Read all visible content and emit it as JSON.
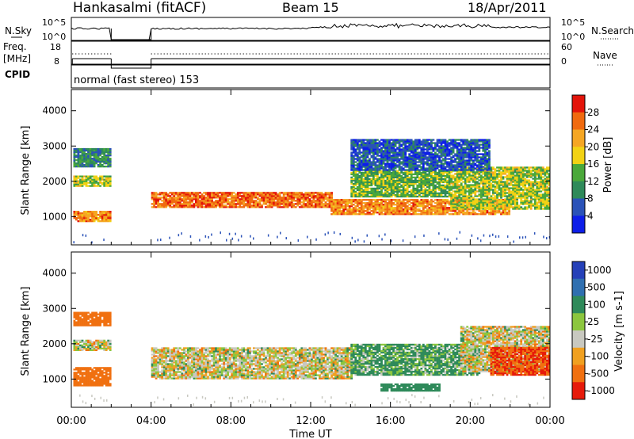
{
  "header": {
    "station": "Hankasalmi (fitACF)",
    "beam": "Beam 15",
    "date": "18/Apr/2011"
  },
  "noise_panel": {
    "left_label": "N.Sky",
    "right_label": "N.Search",
    "ticks_left": [
      "10^5",
      "10^0"
    ],
    "ticks_right": [
      "10^5",
      "10^0"
    ]
  },
  "freq_panel": {
    "left_label_1": "Freq.",
    "left_label_2": "[MHz]",
    "right_label": "Nave",
    "ticks_left": [
      "18",
      "8"
    ],
    "ticks_right": [
      "60",
      "0"
    ]
  },
  "cpid_panel": {
    "label": "CPID",
    "mode_text": "normal (fast stereo) 153"
  },
  "time_ticks": [
    "00:00",
    "04:00",
    "08:00",
    "12:00",
    "16:00",
    "20:00",
    "00:00"
  ],
  "xlabel": "Time UT",
  "range_ticks": [
    "1000",
    "2000",
    "3000",
    "4000"
  ],
  "power_panel": {
    "ylabel": "Slant Range [km]",
    "colorbar_label": "Power [dB]",
    "colorbar_ticks": [
      "4",
      "8",
      "12",
      "16",
      "20",
      "24",
      "28"
    ],
    "colors": [
      "#0d1ee8",
      "#2a52b8",
      "#2f8a5a",
      "#4aa83a",
      "#f2d214",
      "#f5a623",
      "#f06a0f",
      "#e3140a"
    ]
  },
  "velocity_panel": {
    "ylabel": "Slant Range [km]",
    "colorbar_label": "Velocity [m s-1]",
    "colorbar_ticks": [
      "1000",
      "500",
      "100",
      "25",
      "-25",
      "-100",
      "-500",
      "-1000"
    ],
    "colors": [
      "#2540b8",
      "#2f6fb0",
      "#2f8a5a",
      "#8cc63e",
      "#c8c8c0",
      "#f0a020",
      "#f07010",
      "#e61a0a"
    ]
  },
  "chart_data": {
    "type": "heatmap",
    "x_unit": "hours UT",
    "xlim": [
      0,
      24
    ],
    "ylim": [
      200,
      4600
    ],
    "data_gap_hours": [
      2,
      4
    ],
    "power_layers": [
      {
        "t0": 0.1,
        "t1": 2.0,
        "r0": 850,
        "r1": 1150,
        "level": 24
      },
      {
        "t0": 0.1,
        "t1": 2.0,
        "r0": 1850,
        "r1": 2150,
        "level": 16
      },
      {
        "t0": 0.1,
        "t1": 2.0,
        "r0": 2400,
        "r1": 2900,
        "level": 10
      },
      {
        "t0": 4.0,
        "t1": 13.0,
        "r0": 1250,
        "r1": 1700,
        "level": 26
      },
      {
        "t0": 13.0,
        "t1": 22.0,
        "r0": 1050,
        "r1": 1500,
        "level": 24
      },
      {
        "t0": 14.0,
        "t1": 19.0,
        "r0": 1550,
        "r1": 2300,
        "level": 14
      },
      {
        "t0": 19.0,
        "t1": 24.0,
        "r0": 1200,
        "r1": 2400,
        "level": 16
      },
      {
        "t0": 14.0,
        "t1": 21.0,
        "r0": 2300,
        "r1": 3200,
        "level": 6
      }
    ],
    "velocity_layers": [
      {
        "t0": 0.1,
        "t1": 2.0,
        "r0": 800,
        "r1": 1300,
        "value": -200
      },
      {
        "t0": 0.1,
        "t1": 2.0,
        "r0": 1800,
        "r1": 2100,
        "value": 0
      },
      {
        "t0": 0.1,
        "t1": 2.0,
        "r0": 2500,
        "r1": 2900,
        "value": -150
      },
      {
        "t0": 4.0,
        "t1": 14.0,
        "r0": 1000,
        "r1": 1900,
        "value": 0
      },
      {
        "t0": 14.0,
        "t1": 20.5,
        "r0": 1100,
        "r1": 2000,
        "value": 80
      },
      {
        "t0": 19.5,
        "t1": 24.0,
        "r0": 1200,
        "r1": 2500,
        "value": 0
      },
      {
        "t0": 21.0,
        "t1": 24.0,
        "r0": 1100,
        "r1": 1900,
        "value": -300
      },
      {
        "t0": 15.5,
        "t1": 18.5,
        "r0": 650,
        "r1": 850,
        "value": 200
      }
    ]
  }
}
